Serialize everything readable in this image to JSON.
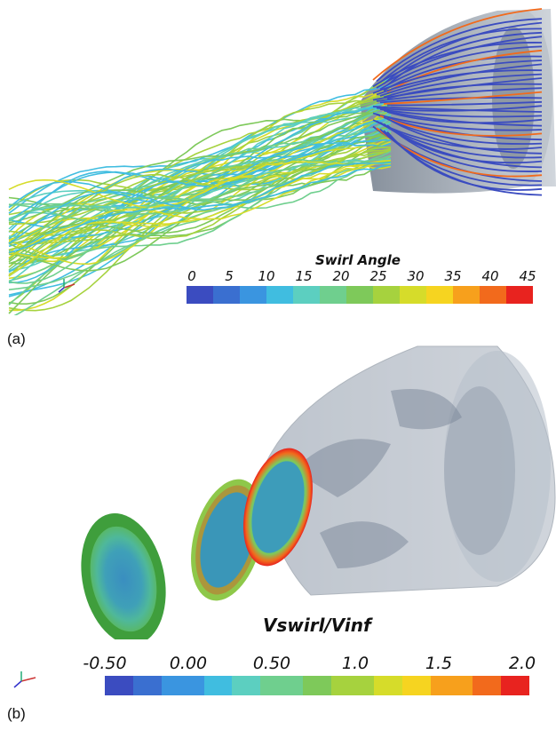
{
  "panel_a": {
    "label": "(a)",
    "colorbar": {
      "title": "Swirl Angle",
      "ticks": [
        "0",
        "5",
        "10",
        "15",
        "20",
        "25",
        "30",
        "35",
        "40",
        "45"
      ]
    }
  },
  "panel_b": {
    "label": "(b)",
    "colorbar": {
      "title": "Vswirl/Vinf",
      "ticks": [
        "-0.50",
        "0.00",
        "0.50",
        "1.0",
        "1.5",
        "2.0"
      ]
    }
  },
  "colormap": [
    "#3b4cc0",
    "#3a6fd0",
    "#3a95e0",
    "#40bde0",
    "#5ccfc0",
    "#6fcf8e",
    "#7ec95a",
    "#a6d23e",
    "#d6dc2a",
    "#f6d420",
    "#f7a01c",
    "#f26a1c",
    "#e8231f"
  ],
  "axis_triad": [
    "Y",
    "Z",
    "X"
  ]
}
